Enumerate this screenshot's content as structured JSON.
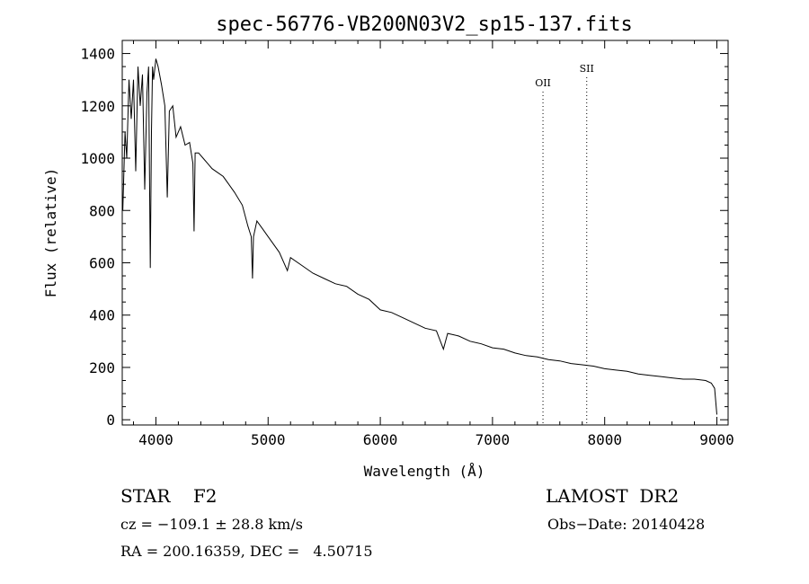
{
  "chart_data": {
    "type": "line",
    "title": "spec-56776-VB200N03V2_sp15-137.fits",
    "xlabel": "Wavelength (Å)",
    "ylabel": "Flux (relative)",
    "xlim": [
      3700,
      9100
    ],
    "ylim": [
      -20,
      1450
    ],
    "xticks": [
      4000,
      5000,
      6000,
      7000,
      8000,
      9000
    ],
    "yticks": [
      0,
      200,
      400,
      600,
      800,
      1000,
      1200,
      1400
    ],
    "grid": false,
    "line_color": "#000000",
    "annotations": [
      {
        "label": "OII",
        "x": 7450,
        "y": 1275
      },
      {
        "label": "SII",
        "x": 7840,
        "y": 1330
      }
    ],
    "series": [
      {
        "x": [
          3705,
          3725,
          3740,
          3760,
          3780,
          3800,
          3820,
          3840,
          3860,
          3880,
          3900,
          3920,
          3935,
          3950,
          3960,
          3970,
          3980,
          4000,
          4020,
          4050,
          4080,
          4101,
          4120,
          4150,
          4180,
          4220,
          4260,
          4300,
          4330,
          4340,
          4350,
          4380,
          4420,
          4460,
          4500,
          4600,
          4700,
          4770,
          4820,
          4850,
          4861,
          4870,
          4900,
          4950,
          5000,
          5100,
          5172,
          5200,
          5300,
          5400,
          5500,
          5600,
          5700,
          5800,
          5900,
          6000,
          6100,
          6200,
          6300,
          6400,
          6500,
          6563,
          6600,
          6700,
          6800,
          6900,
          7000,
          7100,
          7200,
          7300,
          7400,
          7500,
          7600,
          7700,
          7800,
          7900,
          8000,
          8100,
          8200,
          8300,
          8400,
          8500,
          8600,
          8700,
          8800,
          8900,
          8950,
          8980,
          9000
        ],
        "y": [
          800,
          1100,
          1000,
          1300,
          1150,
          1300,
          950,
          1350,
          1200,
          1320,
          880,
          1250,
          1350,
          580,
          1100,
          1350,
          1300,
          1380,
          1350,
          1280,
          1200,
          850,
          1180,
          1200,
          1080,
          1120,
          1050,
          1060,
          980,
          720,
          1020,
          1020,
          1000,
          980,
          960,
          930,
          870,
          820,
          740,
          700,
          540,
          700,
          760,
          730,
          700,
          640,
          570,
          620,
          590,
          560,
          540,
          520,
          510,
          480,
          460,
          420,
          410,
          390,
          370,
          350,
          340,
          270,
          330,
          320,
          300,
          290,
          275,
          270,
          255,
          245,
          240,
          230,
          225,
          215,
          210,
          205,
          195,
          190,
          185,
          175,
          170,
          165,
          160,
          155,
          155,
          150,
          140,
          120,
          20
        ]
      }
    ]
  },
  "info": {
    "object_type": "STAR    F2",
    "survey": "LAMOST  DR2",
    "cz": "cz = −109.1 ± 28.8 km/s",
    "obs_date": "Obs−Date: 20140428",
    "coords": "RA = 200.16359, DEC =   4.50715"
  }
}
